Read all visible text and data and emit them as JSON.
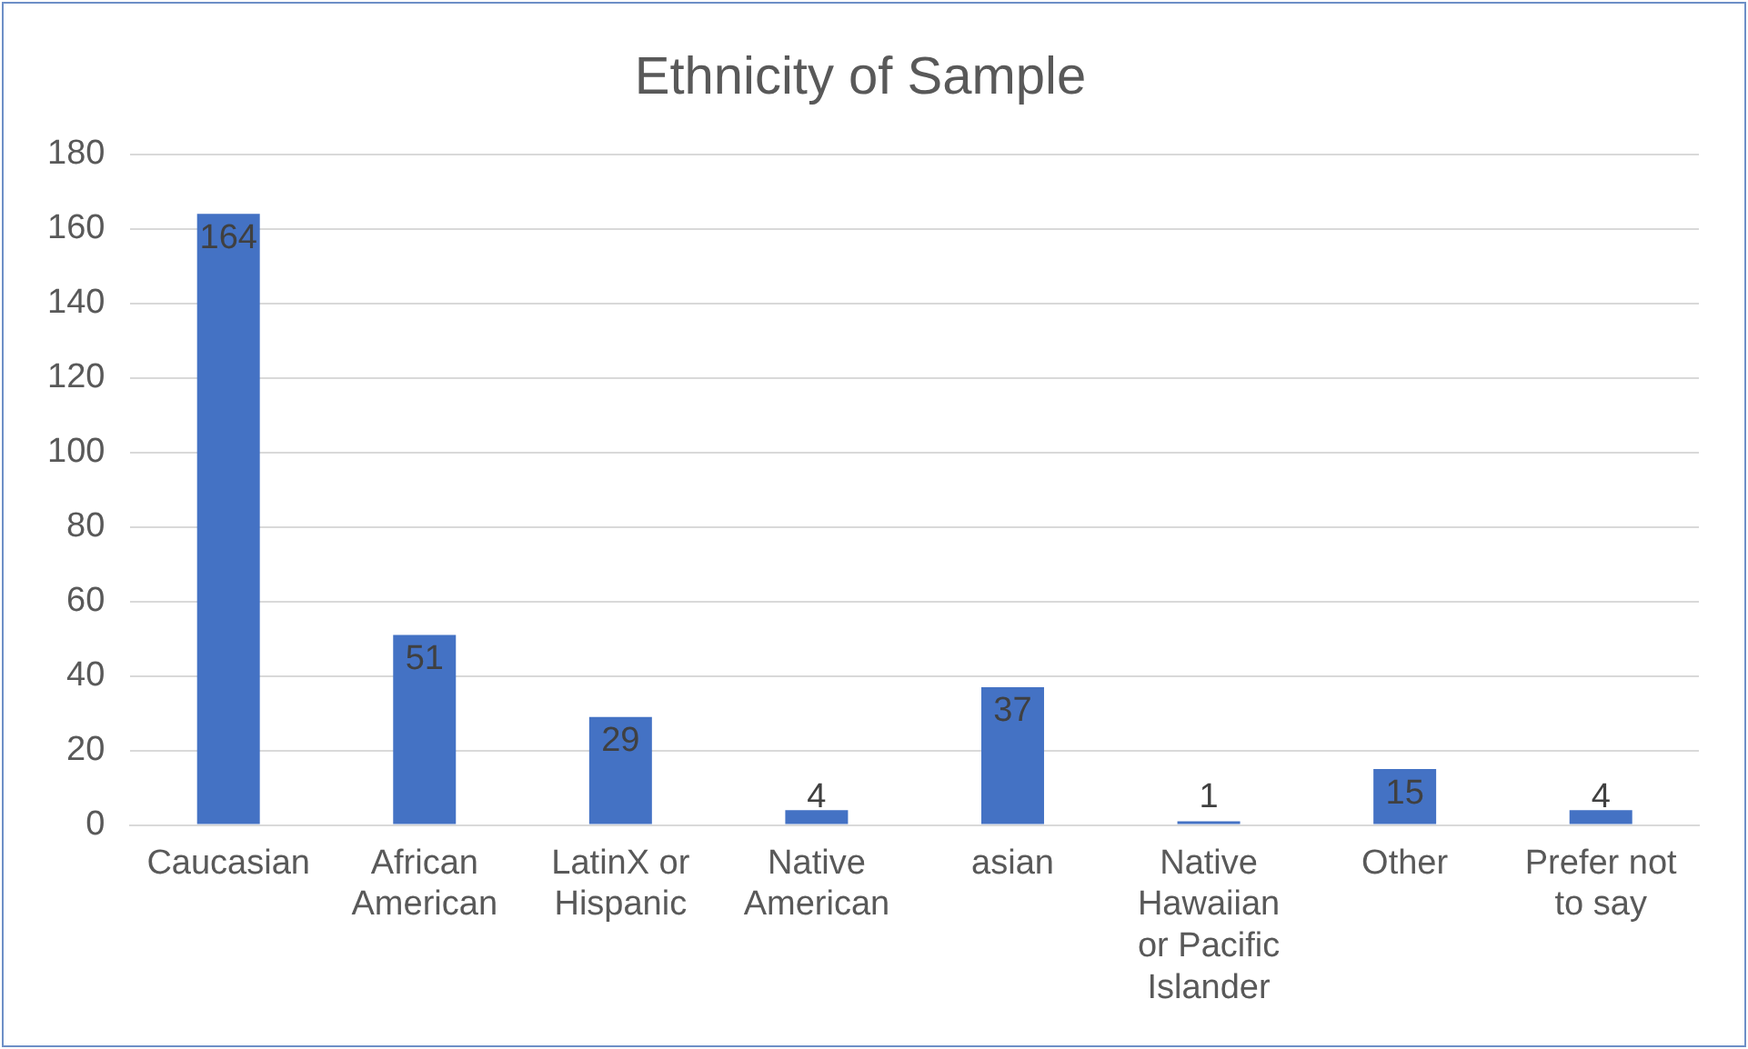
{
  "chart_data": {
    "type": "bar",
    "title": "Ethnicity of Sample",
    "categories": [
      "Caucasian",
      "African American",
      "LatinX or Hispanic",
      "Native American",
      "asian",
      "Native Hawaiian or Pacific Islander",
      "Other",
      "Prefer not to say"
    ],
    "values": [
      164,
      51,
      29,
      4,
      37,
      1,
      15,
      4
    ],
    "color": "#4472c4",
    "ylim": [
      0,
      180
    ],
    "yticks": [
      0,
      20,
      40,
      60,
      80,
      100,
      120,
      140,
      160,
      180
    ],
    "grid": "y",
    "data_labels": true,
    "legend": false
  }
}
